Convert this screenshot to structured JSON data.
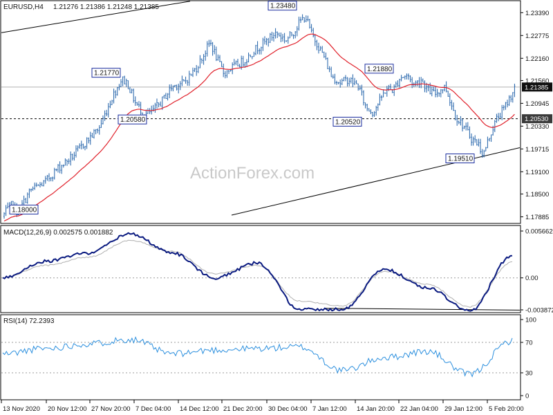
{
  "header": {
    "symbol": "EURUSD,H4",
    "ohlc": "1.21276 1.21386 1.21248 1.21385",
    "macd_label": "MACD(12,26,9) 0.002575 0.001882",
    "rsi_label": "RSI(14) 72.2393"
  },
  "watermark": "ActionForex.com",
  "colors": {
    "price_bar": "#1e5fa8",
    "ema": "#e0202a",
    "macd_line": "#0a1a80",
    "signal_line": "#b0b0b0",
    "rsi_line": "#2b8fde",
    "current_price_box": "#0e0e0e"
  },
  "price_axis": {
    "ticks": [
      "1.23390",
      "1.22775",
      "1.22160",
      "1.21560",
      "1.20945",
      "1.20330",
      "1.19715",
      "1.19100",
      "1.18500",
      "1.17885"
    ],
    "ylim": [
      1.17885,
      1.2339
    ],
    "current_price": "1.21385",
    "support_level": "1.20530"
  },
  "macd_axis": {
    "ticks": [
      "0.005662",
      "0.00",
      "-0.003872"
    ]
  },
  "rsi_axis": {
    "ticks": [
      "100",
      "70",
      "30",
      "0"
    ]
  },
  "time_axis": {
    "labels": [
      "13 Nov 2020",
      "20 Nov 12:00",
      "27 Nov 20:00",
      "7 Dec 04:00",
      "14 Dec 12:00",
      "21 Dec 20:00",
      "30 Dec 04:00",
      "7 Jan 12:00",
      "14 Jan 20:00",
      "22 Jan 04:00",
      "29 Jan 12:00",
      "5 Feb 20:00"
    ]
  },
  "annotations": [
    {
      "text": "1.18000"
    },
    {
      "text": "1.21770"
    },
    {
      "text": "1.20580"
    },
    {
      "text": "1.23480"
    },
    {
      "text": "1.21880"
    },
    {
      "text": "1.20520"
    },
    {
      "text": "1.19510"
    }
  ],
  "chart_data": {
    "type": "line",
    "title": "EURUSD,H4",
    "x": [
      "13 Nov 2020",
      "20 Nov 12:00",
      "27 Nov 20:00",
      "7 Dec 04:00",
      "14 Dec 12:00",
      "21 Dec 20:00",
      "30 Dec 04:00",
      "7 Jan 12:00",
      "14 Jan 20:00",
      "22 Jan 04:00",
      "29 Jan 12:00",
      "5 Feb 20:00"
    ],
    "ylim": [
      1.17885,
      1.2339
    ],
    "series": [
      {
        "values": [
          1.18,
          1.188,
          1.1975,
          1.209,
          1.215,
          1.222,
          1.229,
          1.224,
          1.2125,
          1.218,
          1.2085,
          1.208
        ]
      },
      {
        "values": [
          1.1822,
          1.1848,
          1.1915,
          1.2045,
          1.2105,
          1.218,
          1.2235,
          1.2255,
          1.2175,
          1.2155,
          1.212,
          1.2055
        ]
      }
    ],
    "pivots": [
      {
        "x": "13 Nov 2020",
        "y": 1.18
      },
      {
        "x": "27 Nov 20:00",
        "y": 1.2177
      },
      {
        "x": "7 Dec 04:00",
        "y": 1.2058
      },
      {
        "x": "30 Dec 04:00",
        "y": 1.2348
      },
      {
        "x": "14 Jan 20:00",
        "y": 1.2052
      },
      {
        "x": "22 Jan 04:00",
        "y": 1.2188
      },
      {
        "x": "5 Feb 20:00",
        "y": 1.1951
      }
    ],
    "last_price": 1.21385,
    "horizontal_level": 1.2053,
    "grid": false,
    "indicators": {
      "macd": {
        "ylim": [
          -0.003872,
          0.005662
        ],
        "macd_values": [
          -0.0,
          0.002,
          0.003,
          0.0053,
          0.003,
          0.0,
          0.0018,
          -0.0038,
          -0.0038,
          0.001,
          -0.0012,
          -0.004,
          0.0027
        ],
        "signal_values": [
          0.0,
          0.0015,
          0.0025,
          0.0045,
          0.0032,
          0.0005,
          0.0015,
          -0.0028,
          -0.0034,
          0.0008,
          -0.0008,
          -0.0035,
          0.0019
        ]
      },
      "rsi": {
        "ylim": [
          0,
          100
        ],
        "levels": [
          70,
          30
        ],
        "values": [
          55,
          62,
          68,
          74,
          55,
          60,
          62,
          64,
          33,
          50,
          58,
          28,
          72
        ]
      }
    }
  }
}
